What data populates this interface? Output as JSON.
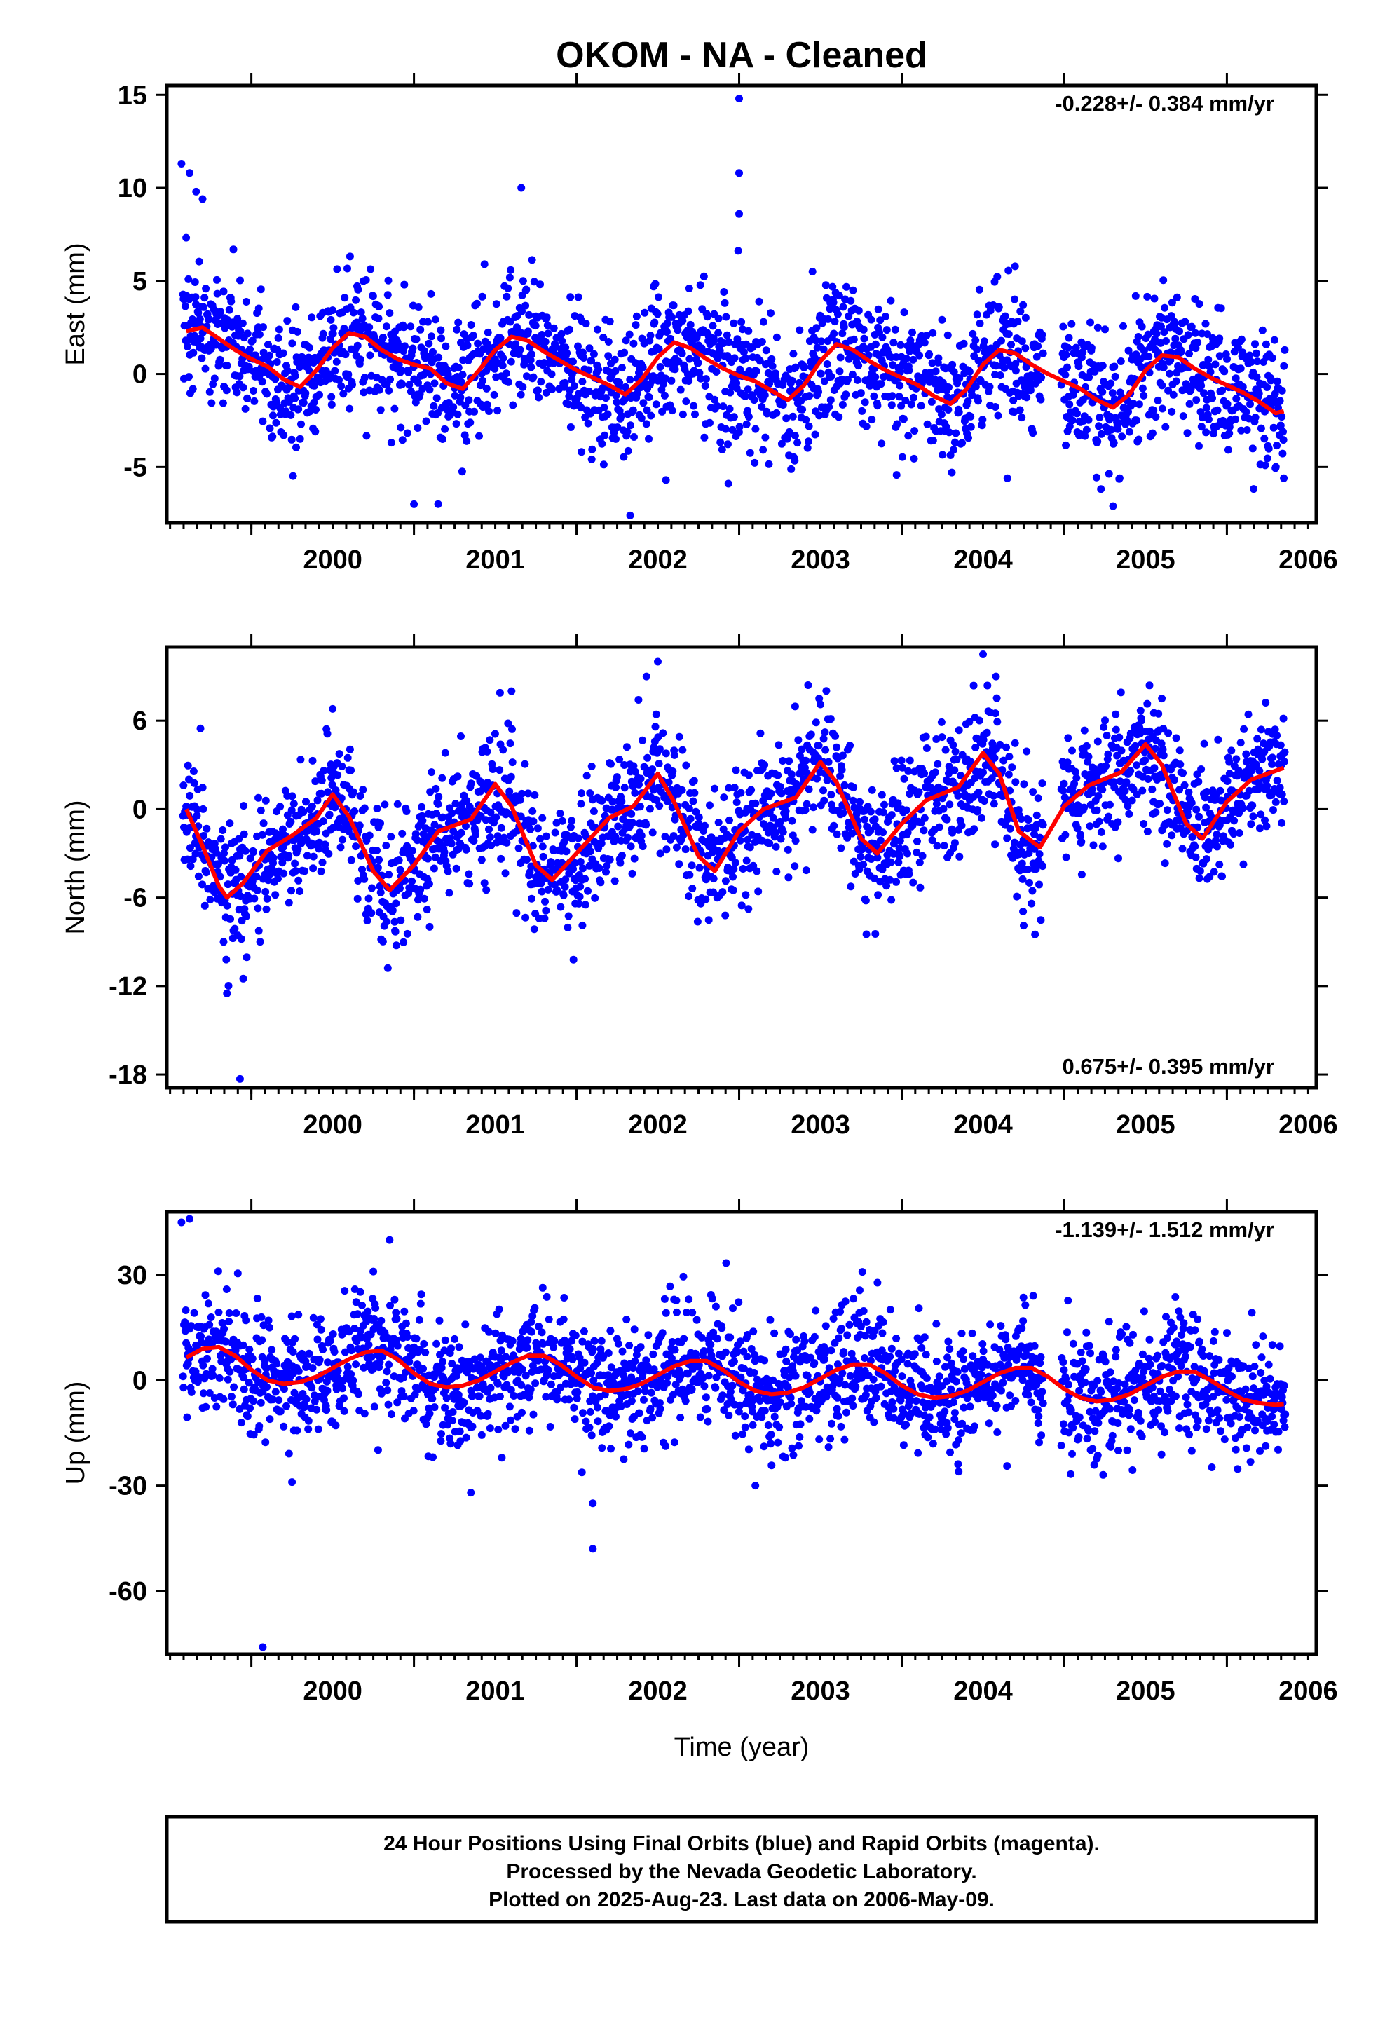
{
  "page_title": "OKOM  - NA - Cleaned",
  "colors": {
    "final_orbits": "#0000ff",
    "model_fit": "#ff0000",
    "frame": "#000000"
  },
  "footer": {
    "line1": "24 Hour Positions Using Final Orbits (blue) and Rapid Orbits (magenta).",
    "line2": "Processed by the Nevada Geodetic Laboratory.",
    "line3": "Plotted on 2025-Aug-23. Last data on 2006-May-09."
  },
  "chart_data": [
    {
      "type": "scatter",
      "component": "east",
      "ylabel": "East (mm)",
      "xlabel": "",
      "rate_text": "-0.228+/- 0.384 mm/yr",
      "rate_position": "top-right",
      "xlim": [
        1999.48,
        2006.55
      ],
      "ylim": [
        -8,
        15.5
      ],
      "xticks": [
        "2000",
        "2001",
        "2002",
        "2003",
        "2004",
        "2005",
        "2006"
      ],
      "yticks": [
        "-5",
        "0",
        "5",
        "10",
        "15"
      ],
      "grid": false,
      "trend": {
        "rate": -0.228,
        "offset": 0.3
      },
      "annual": {
        "a": 1.4,
        "phase": 0.62
      },
      "semiannual": {
        "a": 0.4,
        "phase": 0.15
      },
      "scatter_sd": 1.8,
      "fit_samples": [
        [
          1999.6,
          2.3
        ],
        [
          1999.7,
          2.5
        ],
        [
          1999.8,
          1.9
        ],
        [
          1999.9,
          1.3
        ],
        [
          2000.0,
          0.8
        ],
        [
          2000.1,
          0.4
        ],
        [
          2000.2,
          -0.3
        ],
        [
          2000.3,
          -0.7
        ],
        [
          2000.4,
          0.2
        ],
        [
          2000.5,
          1.4
        ],
        [
          2000.6,
          2.2
        ],
        [
          2000.7,
          2.0
        ],
        [
          2000.8,
          1.3
        ],
        [
          2000.9,
          0.8
        ],
        [
          2001.0,
          0.5
        ],
        [
          2001.1,
          0.3
        ],
        [
          2001.2,
          -0.5
        ],
        [
          2001.3,
          -0.8
        ],
        [
          2001.4,
          0.2
        ],
        [
          2001.5,
          1.3
        ],
        [
          2001.6,
          2.0
        ],
        [
          2001.7,
          1.8
        ],
        [
          2001.8,
          1.2
        ],
        [
          2001.9,
          0.7
        ],
        [
          2002.0,
          0.2
        ],
        [
          2002.1,
          -0.2
        ],
        [
          2002.2,
          -0.6
        ],
        [
          2002.3,
          -1.1
        ],
        [
          2002.4,
          -0.3
        ],
        [
          2002.5,
          0.9
        ],
        [
          2002.6,
          1.7
        ],
        [
          2002.7,
          1.4
        ],
        [
          2002.8,
          0.8
        ],
        [
          2002.9,
          0.3
        ],
        [
          2003.0,
          -0.1
        ],
        [
          2003.1,
          -0.4
        ],
        [
          2003.2,
          -0.9
        ],
        [
          2003.3,
          -1.4
        ],
        [
          2003.4,
          -0.6
        ],
        [
          2003.5,
          0.7
        ],
        [
          2003.6,
          1.6
        ],
        [
          2003.7,
          1.3
        ],
        [
          2003.8,
          0.7
        ],
        [
          2003.9,
          0.2
        ],
        [
          2004.0,
          -0.2
        ],
        [
          2004.1,
          -0.6
        ],
        [
          2004.2,
          -1.2
        ],
        [
          2004.3,
          -1.6
        ],
        [
          2004.4,
          -0.8
        ],
        [
          2004.5,
          0.5
        ],
        [
          2004.6,
          1.3
        ],
        [
          2004.7,
          1.1
        ],
        [
          2004.8,
          0.5
        ],
        [
          2004.9,
          0.0
        ],
        [
          2005.0,
          -0.4
        ],
        [
          2005.1,
          -0.8
        ],
        [
          2005.2,
          -1.4
        ],
        [
          2005.3,
          -1.8
        ],
        [
          2005.4,
          -1.1
        ],
        [
          2005.5,
          0.2
        ],
        [
          2005.6,
          1.0
        ],
        [
          2005.7,
          0.9
        ],
        [
          2005.8,
          0.3
        ],
        [
          2005.9,
          -0.2
        ],
        [
          2006.0,
          -0.6
        ],
        [
          2006.1,
          -1.0
        ],
        [
          2006.2,
          -1.5
        ],
        [
          2006.3,
          -2.1
        ],
        [
          2006.35,
          -2.0
        ]
      ],
      "outliers": [
        [
          1999.57,
          11.3
        ],
        [
          1999.62,
          10.8
        ],
        [
          1999.66,
          9.8
        ],
        [
          1999.7,
          9.4
        ],
        [
          2001.66,
          10.0
        ],
        [
          2003.0,
          14.8
        ],
        [
          2003.0,
          10.8
        ],
        [
          2003.0,
          8.6
        ],
        [
          2001.0,
          -7.0
        ],
        [
          2002.33,
          -7.6
        ],
        [
          2005.3,
          -7.1
        ],
        [
          2002.55,
          -5.7
        ],
        [
          2004.65,
          -5.6
        ],
        [
          2006.35,
          -5.6
        ]
      ]
    },
    {
      "type": "scatter",
      "component": "north",
      "ylabel": "North (mm)",
      "xlabel": "",
      "rate_text": "0.675+/- 0.395 mm/yr",
      "rate_position": "bottom-right",
      "xlim": [
        1999.48,
        2006.55
      ],
      "ylim": [
        -18.9,
        11
      ],
      "xticks": [
        "2000",
        "2001",
        "2002",
        "2003",
        "2004",
        "2005",
        "2006"
      ],
      "yticks": [
        "-18",
        "-12",
        "-6",
        "0",
        "6"
      ],
      "grid": false,
      "trend": {
        "rate": 0.675,
        "offset": -1.6
      },
      "annual": {
        "a": 3.3,
        "phase": 0.5
      },
      "semiannual": {
        "a": 0.8,
        "phase": 0.1
      },
      "scatter_sd": 2.2,
      "fit_samples": [
        [
          1999.6,
          0.0
        ],
        [
          1999.7,
          -2.5
        ],
        [
          1999.8,
          -5.2
        ],
        [
          1999.85,
          -6.0
        ],
        [
          1999.95,
          -5.0
        ],
        [
          2000.1,
          -2.8
        ],
        [
          2000.25,
          -1.8
        ],
        [
          2000.4,
          -0.6
        ],
        [
          2000.5,
          1.0
        ],
        [
          2000.6,
          -0.5
        ],
        [
          2000.75,
          -4.2
        ],
        [
          2000.85,
          -5.5
        ],
        [
          2001.0,
          -3.8
        ],
        [
          2001.15,
          -1.5
        ],
        [
          2001.35,
          -0.7
        ],
        [
          2001.5,
          1.7
        ],
        [
          2001.6,
          0.2
        ],
        [
          2001.75,
          -3.8
        ],
        [
          2001.85,
          -4.8
        ],
        [
          2002.0,
          -3.0
        ],
        [
          2002.2,
          -0.6
        ],
        [
          2002.35,
          0.2
        ],
        [
          2002.5,
          2.4
        ],
        [
          2002.6,
          0.5
        ],
        [
          2002.75,
          -3.2
        ],
        [
          2002.85,
          -4.2
        ],
        [
          2003.0,
          -1.5
        ],
        [
          2003.15,
          0.0
        ],
        [
          2003.35,
          0.8
        ],
        [
          2003.5,
          3.2
        ],
        [
          2003.6,
          1.8
        ],
        [
          2003.75,
          -2.0
        ],
        [
          2003.85,
          -3.0
        ],
        [
          2004.0,
          -1.0
        ],
        [
          2004.15,
          0.6
        ],
        [
          2004.35,
          1.5
        ],
        [
          2004.5,
          3.8
        ],
        [
          2004.6,
          2.4
        ],
        [
          2004.72,
          -1.5
        ],
        [
          2004.85,
          -2.6
        ],
        [
          2005.0,
          0.2
        ],
        [
          2005.15,
          1.6
        ],
        [
          2005.35,
          2.5
        ],
        [
          2005.5,
          4.4
        ],
        [
          2005.6,
          3.0
        ],
        [
          2005.75,
          -1.0
        ],
        [
          2005.85,
          -2.0
        ],
        [
          2006.0,
          0.5
        ],
        [
          2006.15,
          2.0
        ],
        [
          2006.35,
          2.8
        ]
      ],
      "outliers": [
        [
          1999.85,
          -12.5
        ],
        [
          1999.95,
          -11.5
        ],
        [
          1999.93,
          -18.3
        ],
        [
          2002.5,
          10.0
        ],
        [
          2002.43,
          9.0
        ],
        [
          2004.5,
          10.5
        ],
        [
          2004.58,
          9.0
        ],
        [
          2001.6,
          8.0
        ],
        [
          2004.75,
          -7.9
        ],
        [
          2004.82,
          -8.5
        ],
        [
          2005.6,
          7.5
        ],
        [
          2000.5,
          6.8
        ]
      ]
    },
    {
      "type": "scatter",
      "component": "up",
      "ylabel": "Up (mm)",
      "xlabel": "Time (year)",
      "rate_text": "-1.139+/- 1.512 mm/yr",
      "rate_position": "top-right",
      "xlim": [
        1999.48,
        2006.55
      ],
      "ylim": [
        -78,
        48
      ],
      "xticks": [
        "2000",
        "2001",
        "2002",
        "2003",
        "2004",
        "2005",
        "2006"
      ],
      "yticks": [
        "-60",
        "-30",
        "0",
        "30"
      ],
      "grid": false,
      "trend": {
        "rate": -1.139,
        "offset": 3.6
      },
      "annual": {
        "a": 5.0,
        "phase": 0.05
      },
      "semiannual": {
        "a": 0.8,
        "phase": 0.2
      },
      "scatter_sd": 8.5,
      "fit_samples": [
        [
          1999.6,
          6.5
        ],
        [
          1999.7,
          9.0
        ],
        [
          1999.8,
          9.5
        ],
        [
          1999.9,
          7.0
        ],
        [
          2000.0,
          3.0
        ],
        [
          2000.1,
          0.0
        ],
        [
          2000.2,
          -1.0
        ],
        [
          2000.3,
          -0.5
        ],
        [
          2000.4,
          1.0
        ],
        [
          2000.5,
          3.5
        ],
        [
          2000.6,
          6.0
        ],
        [
          2000.7,
          8.0
        ],
        [
          2000.8,
          8.5
        ],
        [
          2000.9,
          6.0
        ],
        [
          2001.0,
          2.0
        ],
        [
          2001.1,
          -1.0
        ],
        [
          2001.2,
          -2.0
        ],
        [
          2001.3,
          -1.5
        ],
        [
          2001.4,
          0.0
        ],
        [
          2001.5,
          2.5
        ],
        [
          2001.6,
          5.0
        ],
        [
          2001.7,
          7.0
        ],
        [
          2001.8,
          7.0
        ],
        [
          2001.9,
          4.5
        ],
        [
          2002.0,
          1.0
        ],
        [
          2002.1,
          -2.0
        ],
        [
          2002.2,
          -3.0
        ],
        [
          2002.3,
          -2.5
        ],
        [
          2002.4,
          -1.0
        ],
        [
          2002.5,
          1.5
        ],
        [
          2002.6,
          4.0
        ],
        [
          2002.7,
          5.5
        ],
        [
          2002.8,
          5.5
        ],
        [
          2002.9,
          3.0
        ],
        [
          2003.0,
          -0.5
        ],
        [
          2003.1,
          -3.0
        ],
        [
          2003.2,
          -4.0
        ],
        [
          2003.3,
          -3.5
        ],
        [
          2003.4,
          -2.0
        ],
        [
          2003.5,
          0.5
        ],
        [
          2003.6,
          3.0
        ],
        [
          2003.7,
          4.5
        ],
        [
          2003.8,
          4.5
        ],
        [
          2003.9,
          2.0
        ],
        [
          2004.0,
          -1.5
        ],
        [
          2004.1,
          -4.0
        ],
        [
          2004.2,
          -5.0
        ],
        [
          2004.3,
          -4.5
        ],
        [
          2004.4,
          -3.0
        ],
        [
          2004.5,
          -0.5
        ],
        [
          2004.6,
          2.0
        ],
        [
          2004.7,
          3.5
        ],
        [
          2004.8,
          3.5
        ],
        [
          2004.9,
          1.0
        ],
        [
          2005.0,
          -2.5
        ],
        [
          2005.1,
          -5.0
        ],
        [
          2005.2,
          -6.0
        ],
        [
          2005.3,
          -5.5
        ],
        [
          2005.4,
          -4.0
        ],
        [
          2005.5,
          -1.5
        ],
        [
          2005.6,
          1.0
        ],
        [
          2005.7,
          2.5
        ],
        [
          2005.8,
          2.5
        ],
        [
          2005.9,
          0.0
        ],
        [
          2006.0,
          -3.0
        ],
        [
          2006.1,
          -5.5
        ],
        [
          2006.2,
          -6.5
        ],
        [
          2006.3,
          -7.0
        ],
        [
          2006.35,
          -6.8
        ]
      ],
      "outliers": [
        [
          1999.57,
          45.0
        ],
        [
          1999.62,
          46.0
        ],
        [
          2000.07,
          -76.0
        ],
        [
          2002.1,
          -48.0
        ],
        [
          2000.85,
          40.0
        ],
        [
          2000.75,
          31.0
        ],
        [
          2002.1,
          -35.0
        ],
        [
          2000.25,
          -29.0
        ],
        [
          2001.35,
          -32.0
        ],
        [
          2003.1,
          -30.0
        ],
        [
          2004.35,
          -26.0
        ]
      ]
    }
  ]
}
